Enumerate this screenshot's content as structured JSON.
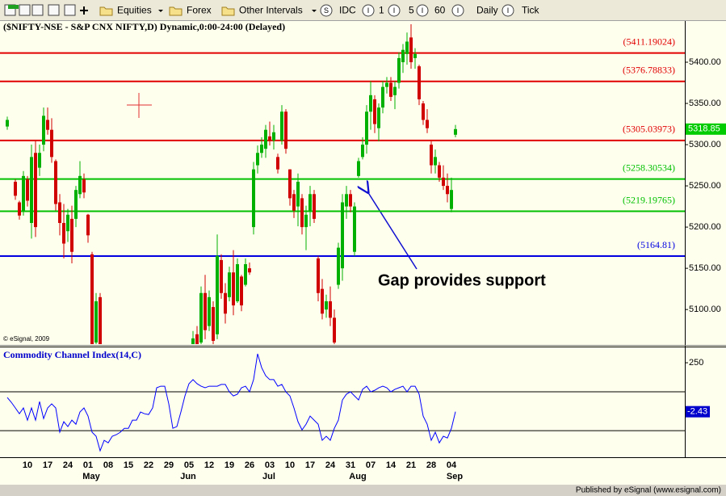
{
  "toolbar": {
    "items": [
      {
        "label": "Equities"
      },
      {
        "label": "Forex"
      },
      {
        "label": "Other Intervals"
      },
      {
        "icon": "S",
        "label": "IDC"
      },
      {
        "icon": "I",
        "label": "1"
      },
      {
        "icon": "I",
        "label": "5"
      },
      {
        "icon": "I",
        "label": "60"
      },
      {
        "icon": "I",
        "label": "Daily"
      },
      {
        "icon": "I",
        "label": "Tick"
      }
    ]
  },
  "footer": "Published by eSignal (www.esignal.com)",
  "chart_data": [
    {
      "type": "candlestick",
      "title": "($NIFTY-NSE - S&P CNX NIFTY,D) Dynamic,0:00-24:00 (Delayed)",
      "copyright": "© eSignal, 2009",
      "annotation": "Gap provides support",
      "categories": [
        null,
        null,
        null,
        null,
        null,
        "10",
        null,
        null,
        null,
        null,
        "17",
        null,
        null,
        null,
        null,
        "24",
        null,
        null,
        null,
        null,
        "01",
        null,
        null,
        null,
        null,
        "08",
        null,
        null,
        null,
        null,
        "15",
        null,
        null,
        null,
        null,
        "22",
        null,
        null,
        null,
        null,
        "29",
        null,
        null,
        null,
        null,
        "05",
        null,
        null,
        null,
        null,
        "12",
        null,
        null,
        null,
        null,
        "19",
        null,
        null,
        null,
        null,
        "26",
        null,
        null,
        null,
        null,
        "03",
        null,
        null,
        null,
        null,
        "10",
        null,
        null,
        null,
        null,
        "17",
        null,
        null,
        null,
        null,
        "24",
        null,
        null,
        null,
        null,
        "31",
        null,
        null,
        null,
        null,
        "07",
        null,
        null,
        null,
        null,
        "14",
        null,
        null,
        null,
        null,
        "21",
        null,
        null,
        null,
        null,
        "28",
        null,
        null,
        null,
        null,
        "04",
        null
      ],
      "months": [
        null,
        null,
        null,
        null,
        null,
        null,
        null,
        null,
        null,
        null,
        null,
        null,
        null,
        null,
        null,
        null,
        null,
        null,
        null,
        null,
        "May",
        null,
        null,
        null,
        null,
        null,
        null,
        null,
        null,
        null,
        null,
        null,
        null,
        null,
        null,
        null,
        null,
        null,
        null,
        null,
        null,
        null,
        null,
        null,
        "Jun",
        null,
        null,
        null,
        null,
        null,
        null,
        null,
        null,
        null,
        null,
        null,
        null,
        null,
        null,
        null,
        null,
        null,
        null,
        null,
        "Jul",
        null,
        null,
        null,
        null,
        null,
        null,
        null,
        null,
        null,
        null,
        null,
        null,
        null,
        null,
        null,
        null,
        null,
        null,
        null,
        null,
        null,
        "Aug",
        null,
        null,
        null,
        null,
        null,
        null,
        null,
        null,
        null,
        null,
        null,
        null,
        null,
        null,
        null,
        null,
        null,
        null,
        null,
        null,
        null,
        null,
        null,
        "Sep",
        null
      ],
      "open": [
        5322,
        null,
        5255,
        5230,
        5220,
        5258,
        5205,
        5290,
        5272,
        5300,
        5330,
        5318,
        5280,
        5230,
        5205,
        5195,
        5210,
        5210,
        5240,
        5258,
        5215,
        5167,
        5060,
        5115,
        null,
        null,
        null,
        null,
        null,
        null,
        null,
        null,
        null,
        null,
        null,
        null,
        null,
        null,
        null,
        null,
        null,
        null,
        null,
        null,
        null,
        null,
        5050,
        5070,
        5060,
        5120,
        5080,
        5103,
        5070,
        5160,
        5120,
        5115,
        5145,
        5110,
        5140,
        5130,
        5150,
        5200,
        5275,
        5290,
        5295,
        5310,
        5305,
        5285,
        5305,
        5340,
        5270,
        5240,
        5225,
        5235,
        5200,
        5220,
        5240,
        5162,
        5125,
        5100,
        5110,
        5090,
        5130,
        5150,
        5225,
        5240,
        5170,
        5262,
        5285,
        5300,
        5340,
        5355,
        5320,
        5345,
        5370,
        5375,
        5360,
        5375,
        5400,
        5410,
        5430,
        5405,
        5395,
        5350,
        5330,
        5300,
        5275,
        5275,
        5260,
        5250,
        5222,
        5312
      ],
      "high": [
        5334,
        null,
        5258,
        5232,
        5268,
        5262,
        5300,
        5305,
        5300,
        5345,
        5345,
        5332,
        5282,
        5240,
        5228,
        5222,
        5226,
        5250,
        5280,
        5265,
        5216,
        5170,
        5120,
        5120,
        null,
        null,
        null,
        null,
        null,
        null,
        null,
        null,
        null,
        null,
        null,
        null,
        null,
        null,
        null,
        null,
        null,
        null,
        null,
        null,
        null,
        null,
        5074,
        5080,
        5128,
        5142,
        5123,
        5110,
        5191,
        5167,
        5132,
        5152,
        5172,
        5162,
        5142,
        5162,
        5157,
        5279,
        5299,
        5309,
        5324,
        5328,
        5324,
        5289,
        5348,
        5343,
        5270,
        5245,
        5265,
        5240,
        5226,
        5250,
        5245,
        5165,
        5137,
        5118,
        5128,
        5100,
        5181,
        5240,
        5250,
        5245,
        5230,
        5284,
        5309,
        5348,
        5377,
        5360,
        5350,
        5377,
        5382,
        5382,
        5377,
        5412,
        5422,
        5436,
        5446,
        5417,
        5397,
        5353,
        5343,
        5304,
        5294,
        5279,
        5275,
        5265,
        5260,
        5324
      ],
      "low": [
        5318,
        null,
        5233,
        5209,
        5214,
        5225,
        5186,
        5188,
        5262,
        5292,
        5312,
        5278,
        5220,
        5190,
        5162,
        5182,
        5156,
        5200,
        5235,
        5235,
        5181,
        5040,
        5040,
        5040,
        null,
        null,
        null,
        null,
        null,
        null,
        null,
        null,
        null,
        null,
        null,
        null,
        null,
        null,
        null,
        null,
        null,
        null,
        null,
        null,
        null,
        null,
        5030,
        5040,
        5050,
        5064,
        5074,
        5050,
        5064,
        5113,
        5083,
        5110,
        5093,
        5108,
        5098,
        5128,
        5142,
        5191,
        5265,
        5284,
        5284,
        5299,
        5294,
        5265,
        5300,
        5289,
        5226,
        5211,
        5201,
        5191,
        5172,
        5201,
        5205,
        5110,
        5088,
        5090,
        5080,
        5050,
        5125,
        5135,
        5210,
        5218,
        5165,
        5260,
        5282,
        5289,
        5318,
        5314,
        5304,
        5338,
        5362,
        5353,
        5343,
        5368,
        5387,
        5397,
        5392,
        5392,
        5348,
        5324,
        5314,
        5265,
        5265,
        5255,
        5245,
        5230,
        5218,
        5309
      ],
      "close": [
        5330,
        null,
        5238,
        5214,
        5262,
        5232,
        5285,
        5200,
        5290,
        5335,
        5318,
        5285,
        5228,
        5205,
        5180,
        5215,
        5170,
        5245,
        5262,
        5242,
        5190,
        5050,
        5110,
        5055,
        null,
        null,
        null,
        null,
        null,
        null,
        null,
        null,
        null,
        null,
        null,
        null,
        null,
        null,
        null,
        null,
        null,
        null,
        null,
        null,
        null,
        null,
        5065,
        5050,
        5120,
        5075,
        5115,
        5062,
        5165,
        5120,
        5095,
        5145,
        5105,
        5155,
        5105,
        5155,
        5145,
        5270,
        5290,
        5300,
        5318,
        5305,
        5315,
        5270,
        5340,
        5295,
        5235,
        5220,
        5255,
        5200,
        5215,
        5240,
        5210,
        5120,
        5095,
        5110,
        5090,
        5060,
        5175,
        5230,
        5240,
        5225,
        5225,
        5280,
        5300,
        5340,
        5360,
        5325,
        5345,
        5370,
        5375,
        5358,
        5370,
        5405,
        5415,
        5425,
        5400,
        5410,
        5355,
        5330,
        5320,
        5275,
        5285,
        5260,
        5250,
        5240,
        5245,
        5318.85
      ],
      "up_color": "#00b000",
      "down_color": "#d00000",
      "ylim": [
        5059,
        5449
      ],
      "yticks": [
        {
          "value": 5400,
          "label": "5400.00"
        },
        {
          "value": 5350,
          "label": "5350.00"
        },
        {
          "value": 5300,
          "label": "5300.00"
        },
        {
          "value": 5250,
          "label": "5250.00"
        },
        {
          "value": 5200,
          "label": "5200.00"
        },
        {
          "value": 5150,
          "label": "5150.00"
        },
        {
          "value": 5100,
          "label": "5100.00"
        }
      ],
      "levels": [
        {
          "value": 5411.19024,
          "label": "(5411.19024)",
          "color": "#e00000"
        },
        {
          "value": 5376.78833,
          "label": "(5376.78833)",
          "color": "#e00000"
        },
        {
          "value": 5305.03973,
          "label": "(5305.03973)",
          "color": "#e00000"
        },
        {
          "value": 5258.30534,
          "label": "(5258.30534)",
          "color": "#00c000"
        },
        {
          "value": 5219.19765,
          "label": "(5219.19765)",
          "color": "#00c000"
        },
        {
          "value": 5164.81,
          "label": "(5164.81)",
          "color": "#0000e0"
        }
      ],
      "last_color": "#00cc00"
    },
    {
      "type": "line",
      "title": "Commodity Channel Index(14,C)",
      "color": "#0000ff",
      "values": [
        71,
        46,
        17,
        -13,
        17,
        -46,
        17,
        -46,
        50,
        -38,
        17,
        38,
        17,
        -108,
        -54,
        -79,
        -46,
        -67,
        -4,
        17,
        -25,
        -108,
        -129,
        -204,
        -150,
        -163,
        -129,
        -121,
        -108,
        -88,
        -88,
        -46,
        -46,
        -4,
        -13,
        -17,
        17,
        121,
        129,
        129,
        38,
        -88,
        -79,
        -4,
        79,
        142,
        163,
        142,
        129,
        121,
        129,
        129,
        129,
        138,
        138,
        100,
        79,
        88,
        121,
        129,
        100,
        163,
        296,
        225,
        183,
        163,
        163,
        129,
        138,
        100,
        79,
        17,
        -54,
        -96,
        -67,
        -25,
        -46,
        -67,
        -150,
        -129,
        -150,
        -88,
        -46,
        58,
        88,
        100,
        79,
        58,
        113,
        129,
        100,
        108,
        121,
        129,
        121,
        100,
        113,
        121,
        129,
        100,
        129,
        129,
        88,
        -25,
        -67,
        -150,
        -108,
        -163,
        -129,
        -138,
        -88,
        -2.43
      ],
      "ylim": [
        -233,
        321
      ],
      "yticks": [
        250
      ],
      "reference_lines": [
        100,
        -100
      ],
      "reference_color": "#000000"
    }
  ]
}
